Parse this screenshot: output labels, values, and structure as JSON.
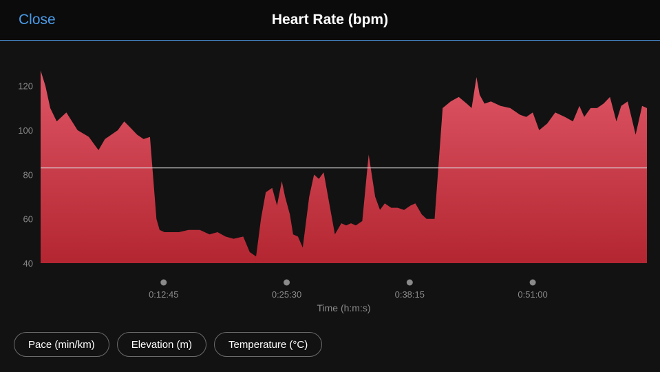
{
  "header": {
    "close_label": "Close",
    "title": "Heart Rate (bpm)",
    "accent_color": "#4a9be8"
  },
  "chart_data": {
    "type": "area",
    "title": "Heart Rate (bpm)",
    "xlabel": "Time (h:m:s)",
    "ylabel": "",
    "x_unit": "seconds",
    "xlim": [
      0,
      3770
    ],
    "ylim": [
      40,
      128
    ],
    "y_ticks": [
      40,
      60,
      80,
      100,
      120
    ],
    "x_ticks": [
      {
        "value": 765,
        "label": "0:12:45"
      },
      {
        "value": 1530,
        "label": "0:25:30"
      },
      {
        "value": 2295,
        "label": "0:38:15"
      },
      {
        "value": 3060,
        "label": "0:51:00"
      }
    ],
    "average_line": 83,
    "fill_color": "#d8404f",
    "grid": false,
    "series": [
      {
        "x": [
          0,
          30,
          60,
          100,
          160,
          230,
          300,
          360,
          400,
          440,
          480,
          520,
          560,
          600,
          640,
          680,
          720,
          740,
          770,
          800,
          860,
          920,
          990,
          1050,
          1100,
          1150,
          1200,
          1260,
          1300,
          1340,
          1370,
          1400,
          1440,
          1470,
          1500,
          1520,
          1550,
          1570,
          1600,
          1630,
          1670,
          1700,
          1730,
          1760,
          1800,
          1830,
          1870,
          1900,
          1930,
          1960,
          2000,
          2040,
          2080,
          2110,
          2140,
          2180,
          2220,
          2260,
          2300,
          2330,
          2370,
          2400,
          2450,
          2500,
          2550,
          2600,
          2650,
          2680,
          2710,
          2730,
          2760,
          2800,
          2860,
          2920,
          2980,
          3020,
          3060,
          3100,
          3150,
          3200,
          3260,
          3310,
          3350,
          3380,
          3420,
          3460,
          3500,
          3540,
          3580,
          3610,
          3650,
          3700,
          3740,
          3770
        ],
        "y": [
          127,
          120,
          110,
          104,
          108,
          100,
          97,
          91,
          96,
          98,
          100,
          104,
          101,
          98,
          96,
          97,
          60,
          55,
          54,
          54,
          54,
          55,
          55,
          53,
          54,
          52,
          51,
          52,
          45,
          43,
          60,
          72,
          74,
          66,
          77,
          70,
          62,
          53,
          52,
          47,
          70,
          80,
          78,
          81,
          65,
          53,
          58,
          57,
          58,
          57,
          59,
          89,
          70,
          64,
          67,
          65,
          65,
          64,
          66,
          67,
          62,
          60,
          60,
          110,
          113,
          115,
          112,
          110,
          124,
          116,
          112,
          113,
          111,
          110,
          107,
          106,
          108,
          100,
          103,
          108,
          106,
          104,
          111,
          106,
          110,
          110,
          112,
          115,
          104,
          111,
          113,
          98,
          111,
          110
        ]
      }
    ]
  },
  "metric_buttons": [
    {
      "label": "Pace (min/km)"
    },
    {
      "label": "Elevation (m)"
    },
    {
      "label": "Temperature (°C)"
    }
  ]
}
